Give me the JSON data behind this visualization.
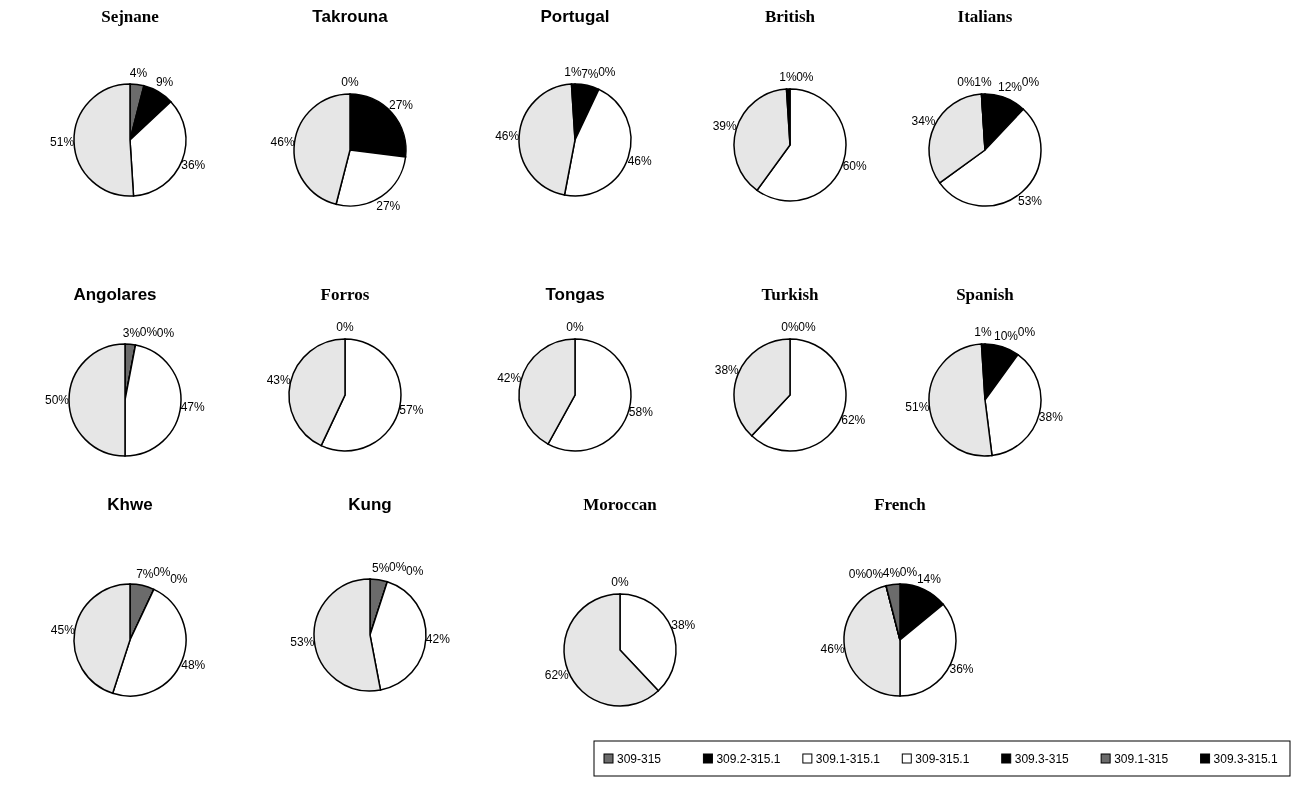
{
  "chart_data": [
    {
      "type": "pie",
      "title": "Sejnane",
      "categories": [
        null,
        null,
        null,
        null
      ],
      "values": [
        4,
        9,
        36,
        51
      ],
      "value_labels": [
        "4%",
        "9%",
        "36%",
        "51%"
      ],
      "colors": [
        "#6b6b6b",
        "#000000",
        "#ffffff",
        "#e6e6e6"
      ]
    },
    {
      "type": "pie",
      "title": "Takrouna",
      "categories": [
        null,
        null,
        null,
        null
      ],
      "values": [
        0,
        27,
        27,
        46
      ],
      "value_labels": [
        "0%",
        "27%",
        "27%",
        "46%"
      ],
      "colors": [
        "#6b6b6b",
        "#000000",
        "#ffffff",
        "#e6e6e6"
      ]
    },
    {
      "type": "pie",
      "title": "Portugal",
      "categories": [
        null,
        null,
        null,
        null,
        null
      ],
      "values": [
        0,
        7,
        46,
        46,
        1
      ],
      "value_labels": [
        "0%",
        "7%",
        "46%",
        "46%",
        "1%"
      ],
      "colors": [
        "#6b6b6b",
        "#000000",
        "#ffffff",
        "#e6e6e6",
        "#000000"
      ]
    },
    {
      "type": "pie",
      "title": "British",
      "categories": [
        null,
        null,
        null,
        null
      ],
      "values": [
        0,
        60,
        39,
        1
      ],
      "value_labels": [
        "0%",
        "60%",
        "39%",
        "1%"
      ],
      "colors": [
        "#6b6b6b",
        "#ffffff",
        "#e6e6e6",
        "#000000"
      ]
    },
    {
      "type": "pie",
      "title": "Italians",
      "categories": [
        null,
        null,
        null,
        null,
        null,
        null
      ],
      "values": [
        0,
        12,
        53,
        34,
        0,
        1
      ],
      "value_labels": [
        "0%",
        "12%",
        "53%",
        "34%",
        "0%",
        "1%"
      ],
      "colors": [
        "#6b6b6b",
        "#000000",
        "#ffffff",
        "#e6e6e6",
        "#6b6b6b",
        "#000000"
      ]
    },
    {
      "type": "pie",
      "title": "Angolares",
      "categories": [
        null,
        null,
        null,
        null,
        null
      ],
      "values": [
        0,
        3,
        0,
        47,
        50
      ],
      "value_labels": [
        "0%",
        "3%",
        "0%",
        "47%",
        "50%"
      ],
      "colors": [
        "#000000",
        "#6b6b6b",
        "#000000",
        "#ffffff",
        "#e6e6e6"
      ]
    },
    {
      "type": "pie",
      "title": "Forros",
      "categories": [
        null,
        null,
        null
      ],
      "values": [
        0,
        57,
        43
      ],
      "value_labels": [
        "0%",
        "57%",
        "43%"
      ],
      "colors": [
        "#6b6b6b",
        "#ffffff",
        "#e6e6e6"
      ]
    },
    {
      "type": "pie",
      "title": "Tongas",
      "categories": [
        null,
        null,
        null
      ],
      "values": [
        0,
        58,
        42
      ],
      "value_labels": [
        "0%",
        "58%",
        "42%"
      ],
      "colors": [
        "#6b6b6b",
        "#ffffff",
        "#e6e6e6"
      ]
    },
    {
      "type": "pie",
      "title": "Turkish",
      "categories": [
        null,
        null,
        null,
        null
      ],
      "values": [
        0,
        0,
        62,
        38
      ],
      "value_labels": [
        "0%",
        "0%",
        "62%",
        "38%"
      ],
      "colors": [
        "#6b6b6b",
        "#000000",
        "#ffffff",
        "#e6e6e6"
      ]
    },
    {
      "type": "pie",
      "title": "Spanish",
      "categories": [
        null,
        null,
        null,
        null,
        null
      ],
      "values": [
        0,
        10,
        38,
        51,
        1
      ],
      "value_labels": [
        "0%",
        "10%",
        "38%",
        "51%",
        "1%"
      ],
      "colors": [
        "#6b6b6b",
        "#000000",
        "#ffffff",
        "#e6e6e6",
        "#000000"
      ]
    },
    {
      "type": "pie",
      "title": "Khwe",
      "categories": [
        null,
        null,
        null,
        null,
        null
      ],
      "values": [
        0,
        7,
        0,
        48,
        45
      ],
      "value_labels": [
        "0%",
        "7%",
        "0%",
        "48%",
        "45%"
      ],
      "colors": [
        "#000000",
        "#6b6b6b",
        "#000000",
        "#ffffff",
        "#e6e6e6"
      ]
    },
    {
      "type": "pie",
      "title": "Kung",
      "categories": [
        null,
        null,
        null,
        null,
        null
      ],
      "values": [
        0,
        5,
        0,
        42,
        53
      ],
      "value_labels": [
        "0%",
        "5%",
        "0%",
        "42%",
        "53%"
      ],
      "colors": [
        "#000000",
        "#6b6b6b",
        "#000000",
        "#ffffff",
        "#e6e6e6"
      ]
    },
    {
      "type": "pie",
      "title": "Moroccan",
      "categories": [
        null,
        null,
        null
      ],
      "values": [
        0,
        38,
        62
      ],
      "value_labels": [
        "0%",
        "38%",
        "62%"
      ],
      "colors": [
        "#6b6b6b",
        "#ffffff",
        "#e6e6e6"
      ]
    },
    {
      "type": "pie",
      "title": "French",
      "categories": [
        null,
        null,
        null,
        null,
        null,
        null,
        null
      ],
      "values": [
        0,
        14,
        36,
        46,
        0,
        0,
        4
      ],
      "value_labels": [
        "0%",
        "14%",
        "36%",
        "46%",
        "0%",
        "0%",
        "4%"
      ],
      "colors": [
        "#6b6b6b",
        "#000000",
        "#ffffff",
        "#e6e6e6",
        "#000000",
        "#6b6b6b",
        "#6b6b6b"
      ]
    },
    {
      "type": "other",
      "categories": [
        "309-315",
        "309.2-315.1",
        "309.1-315.1",
        "309-315.1",
        "309.3-315",
        "309.1-315",
        "309.3-315.1"
      ],
      "colors": [
        "#6b6b6b",
        "#000000",
        "#ffffff",
        "#ffffff",
        "#000000",
        "#6b6b6b",
        "#000000"
      ]
    }
  ]
}
